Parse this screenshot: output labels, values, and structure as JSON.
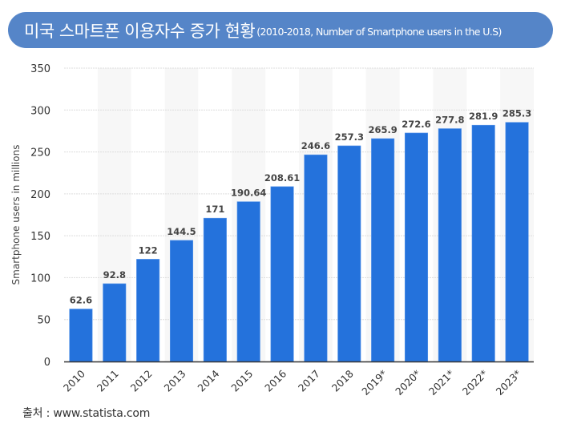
{
  "header": {
    "title": "미국 스마트폰 이용자수 증가 현황",
    "subtitle": "(2010-2018, Number of Smartphone users in the U.S)"
  },
  "source": "출처 : www.statista.com",
  "colors": {
    "title_bg": "#5585c8",
    "bar": "#2472dc",
    "stripe": "#f7f7f7",
    "grid": "#dddddd",
    "axis": "#333333"
  },
  "chart_data": {
    "type": "bar",
    "title": "미국 스마트폰 이용자수 증가 현황",
    "xlabel": "",
    "ylabel": "Smartphone users in millions",
    "ylim": [
      0,
      350
    ],
    "yticks": [
      0,
      50,
      100,
      150,
      200,
      250,
      300,
      350
    ],
    "grid": true,
    "categories": [
      "2010",
      "2011",
      "2012",
      "2013",
      "2014",
      "2015",
      "2016",
      "2017",
      "2018",
      "2019*",
      "2020*",
      "2021*",
      "2022*",
      "2023*"
    ],
    "values": [
      62.6,
      92.8,
      122,
      144.5,
      171,
      190.64,
      208.61,
      246.6,
      257.3,
      265.9,
      272.6,
      277.8,
      281.9,
      285.3
    ],
    "labels": [
      "62.6",
      "92.8",
      "122",
      "144.5",
      "171",
      "190.64",
      "208.61",
      "246.6",
      "257.3",
      "265.9",
      "272.6",
      "277.8",
      "281.9",
      "285.3"
    ]
  }
}
